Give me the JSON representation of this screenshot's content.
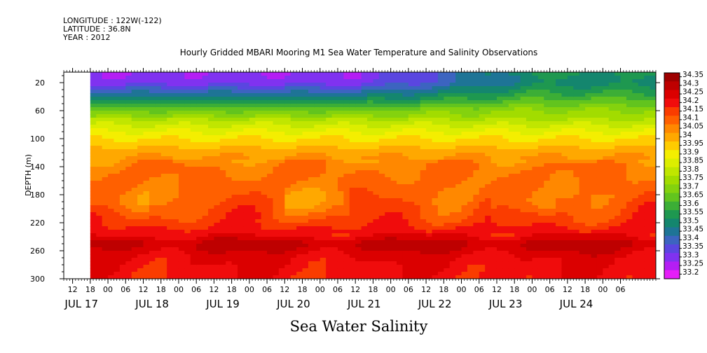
{
  "meta": {
    "longitude": "LONGITUDE : 122W(-122)",
    "latitude": "LATITUDE : 36.8N",
    "year": "YEAR : 2012"
  },
  "chart_data": {
    "type": "heatmap",
    "title": "Hourly Gridded MBARI Mooring M1 Sea Water Temperature and Salinity Observations",
    "xlabel": "Sea Water Salinity",
    "ylabel": "DEPTH (m)",
    "y_ticks": [
      "20",
      "60",
      "100",
      "140",
      "180",
      "220",
      "260",
      "300"
    ],
    "y_tick_values": [
      20,
      60,
      100,
      140,
      180,
      220,
      260,
      300
    ],
    "ylim": [
      300,
      5
    ],
    "x_hour_labels": [
      "12",
      "18",
      "00",
      "06",
      "12",
      "18",
      "00",
      "06",
      "12",
      "18",
      "00",
      "06",
      "12",
      "18",
      "00",
      "06",
      "12",
      "18",
      "00",
      "06",
      "12",
      "18",
      "00",
      "06",
      "12",
      "18",
      "00",
      "06",
      "12",
      "18",
      "00",
      "06"
    ],
    "x_date_labels": [
      "JUL 17",
      "JUL 18",
      "JUL 19",
      "JUL 20",
      "JUL 21",
      "JUL 22",
      "JUL 23",
      "JUL 24"
    ],
    "xlim_hours": [
      0,
      201
    ],
    "data_start_hour": 9,
    "colorbar": {
      "labels": [
        "34.35",
        "34.3",
        "34.25",
        "34.2",
        "34.15",
        "34.1",
        "34.05",
        "34",
        "33.95",
        "33.9",
        "33.85",
        "33.8",
        "33.75",
        "33.7",
        "33.65",
        "33.6",
        "33.55",
        "33.5",
        "33.45",
        "33.4",
        "33.35",
        "33.3",
        "33.25",
        "33.2"
      ],
      "colors": [
        "#9e0000",
        "#be0000",
        "#db0000",
        "#f00c0c",
        "#fa3c00",
        "#ff6000",
        "#ff8800",
        "#ffa800",
        "#ffcc00",
        "#f4ee00",
        "#dcee00",
        "#c0e600",
        "#a2dc00",
        "#84d20e",
        "#62c41e",
        "#3cae36",
        "#1e9850",
        "#14866e",
        "#1e7496",
        "#3c64c0",
        "#5a46e0",
        "#8032f0",
        "#b41ef4",
        "#e61ef8"
      ]
    },
    "depth_profile": [
      {
        "depth": 10,
        "salinity": 33.33
      },
      {
        "depth": 20,
        "salinity": 33.35
      },
      {
        "depth": 40,
        "salinity": 33.52
      },
      {
        "depth": 60,
        "salinity": 33.72
      },
      {
        "depth": 80,
        "salinity": 33.85
      },
      {
        "depth": 100,
        "salinity": 33.95
      },
      {
        "depth": 120,
        "salinity": 34.03
      },
      {
        "depth": 140,
        "salinity": 34.1
      },
      {
        "depth": 180,
        "salinity": 34.12
      },
      {
        "depth": 220,
        "salinity": 34.18
      },
      {
        "depth": 240,
        "salinity": 34.25
      },
      {
        "depth": 250,
        "salinity": 34.32
      },
      {
        "depth": 270,
        "salinity": 34.25
      },
      {
        "depth": 300,
        "salinity": 34.22
      }
    ],
    "grid": false
  }
}
